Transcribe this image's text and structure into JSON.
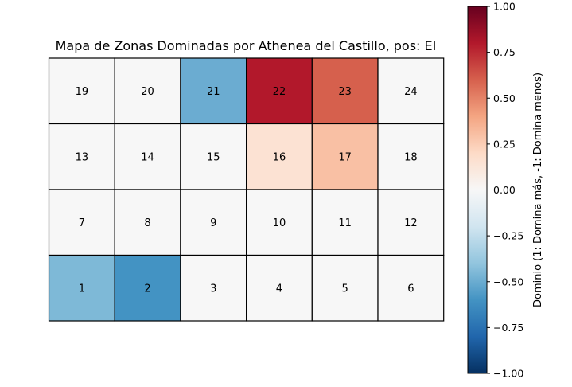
{
  "chart_data": [
    {
      "type": "heatmap",
      "title": "Mapa de Zonas Dominadas por Athenea del Castillo, pos: EI",
      "xlabel": "",
      "ylabel": "",
      "grid": {
        "rows": 4,
        "cols": 6,
        "zones": [
          [
            19,
            20,
            21,
            22,
            23,
            24
          ],
          [
            13,
            14,
            15,
            16,
            17,
            18
          ],
          [
            7,
            8,
            9,
            10,
            11,
            12
          ],
          [
            1,
            2,
            3,
            4,
            5,
            6
          ]
        ],
        "values": [
          [
            0,
            0,
            -0.5,
            0.8,
            0.6,
            0
          ],
          [
            0,
            0,
            0,
            0.15,
            0.3,
            0
          ],
          [
            0,
            0,
            0,
            0,
            0,
            0
          ],
          [
            -0.45,
            -0.6,
            0,
            0,
            0,
            0
          ]
        ]
      },
      "colorbar": {
        "label": "Dominio (1: Domina más, -1: Domina menos)",
        "colormap": "RdBu_r",
        "vmin": -1.0,
        "vmax": 1.0,
        "ticks": [
          "1.00",
          "0.75",
          "0.50",
          "0.25",
          "0.00",
          "−0.25",
          "−0.50",
          "−0.75",
          "−1.00"
        ],
        "tick_values": [
          1.0,
          0.75,
          0.5,
          0.25,
          0.0,
          -0.25,
          -0.5,
          -0.75,
          -1.0
        ]
      }
    }
  ]
}
